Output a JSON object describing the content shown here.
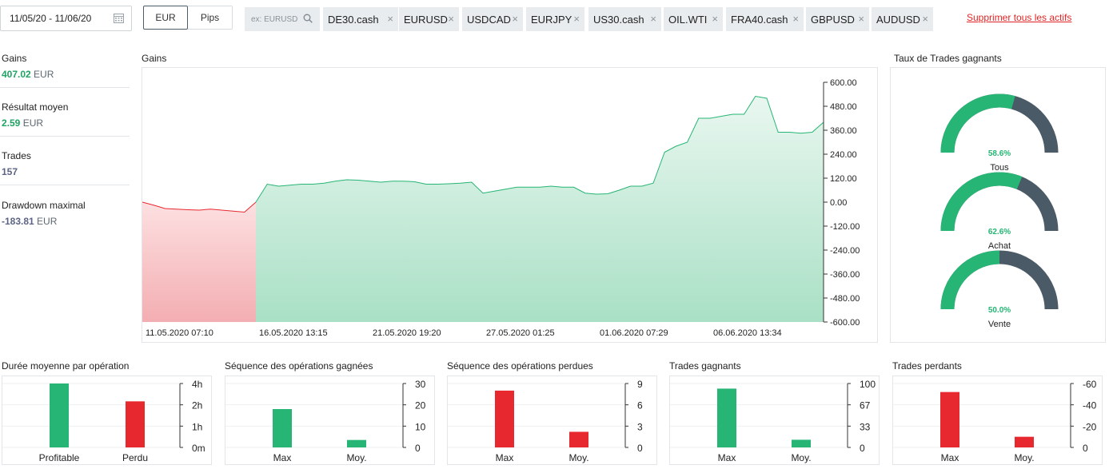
{
  "toolbar": {
    "date_range": "11/05/20 - 11/06/20",
    "unit_eur": "EUR",
    "unit_pips": "Pips",
    "search_placeholder": "ex: EURUSD",
    "assets": [
      "DE30.cash",
      "EURUSD",
      "USDCAD",
      "EURJPY",
      "US30.cash",
      "OIL.WTI",
      "FRA40.cash",
      "GBPUSD",
      "AUDUSD"
    ],
    "remove_symbol": "×",
    "clear_all": "Supprimer tous les actifs"
  },
  "stats": [
    {
      "label": "Gains",
      "value": "407.02",
      "unit": "EUR",
      "color": "#1fa463"
    },
    {
      "label": "Résultat moyen",
      "value": "2.59",
      "unit": "EUR",
      "color": "#1fa463"
    },
    {
      "label": "Trades",
      "value": "157",
      "unit": "",
      "color": "#5c6485"
    },
    {
      "label": "Drawdown maximal",
      "value": "-183.81",
      "unit": "EUR",
      "color": "#5c6485"
    }
  ],
  "main_chart_title": "Gains",
  "gauge_title": "Taux de Trades gagnants",
  "colors": {
    "positive": "#26b574",
    "negative": "#e8282f",
    "gauge_rest": "#4a5a66",
    "area_pos": "#cfeee0",
    "area_neg": "#f8c6c8"
  },
  "chart_data": [
    {
      "type": "line",
      "title": "Gains",
      "x_labels": [
        "11.05.2020 07:10",
        "16.05.2020 13:15",
        "21.05.2020 19:20",
        "27.05.2020 01:25",
        "01.06.2020 07:29",
        "06.06.2020 13:34"
      ],
      "y_ticks": [
        "600.00",
        "480.00",
        "360.00",
        "240.00",
        "120.00",
        "0.00",
        "-120.00",
        "-240.00",
        "-360.00",
        "-480.00",
        "-600.00"
      ],
      "ylim": [
        -600,
        600
      ],
      "series": [
        {
          "values": [
            0,
            -15,
            -32,
            -35,
            -38,
            -40,
            -35,
            -40,
            -45,
            -50,
            0,
            90,
            80,
            85,
            90,
            90,
            95,
            105,
            112,
            110,
            105,
            100,
            105,
            105,
            102,
            90,
            90,
            92,
            95,
            100,
            45,
            55,
            65,
            75,
            75,
            75,
            80,
            75,
            75,
            45,
            40,
            42,
            60,
            80,
            80,
            95,
            250,
            280,
            300,
            420,
            420,
            430,
            440,
            440,
            530,
            520,
            350,
            350,
            345,
            350,
            400
          ]
        }
      ]
    },
    {
      "type": "bar",
      "title": "Durée moyenne par opération",
      "categories": [
        "Profitable",
        "Perdu"
      ],
      "values": [
        4.3,
        3.1
      ],
      "y_ticks": [
        "4h",
        "2h",
        "1h",
        "0m"
      ],
      "ylim": [
        0,
        4.3
      ]
    },
    {
      "type": "bar",
      "title": "Séquence des opérations gagnées",
      "categories": [
        "Max",
        "Moy."
      ],
      "values": [
        18,
        3.5
      ],
      "y_ticks": [
        "30",
        "20",
        "10",
        "0"
      ],
      "ylim": [
        0,
        30
      ]
    },
    {
      "type": "bar",
      "title": "Séquence des opérations perdues",
      "categories": [
        "Max",
        "Moy."
      ],
      "values": [
        8,
        2.2
      ],
      "y_ticks": [
        "9",
        "6",
        "3",
        "0"
      ],
      "ylim": [
        0,
        9
      ]
    },
    {
      "type": "bar",
      "title": "Trades gagnants",
      "categories": [
        "Max",
        "Moy."
      ],
      "values": [
        92,
        12
      ],
      "y_ticks": [
        "100",
        "67",
        "33",
        "0"
      ],
      "ylim": [
        0,
        100
      ]
    },
    {
      "type": "bar",
      "title": "Trades perdants",
      "categories": [
        "Max",
        "Moy."
      ],
      "values": [
        -52,
        -10
      ],
      "y_ticks": [
        "-60",
        "-40",
        "-20",
        "0"
      ],
      "ylim": [
        -60,
        0
      ]
    }
  ],
  "gauges": [
    {
      "label": "Tous",
      "value_text": "58.6%",
      "value": 58.6
    },
    {
      "label": "Achat",
      "value_text": "62.6%",
      "value": 62.6
    },
    {
      "label": "Vente",
      "value_text": "50.0%",
      "value": 50.0
    }
  ]
}
